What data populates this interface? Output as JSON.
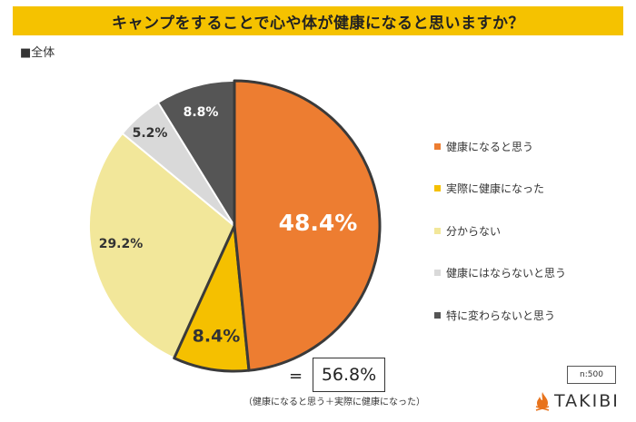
{
  "title": "キャンプをすることで心や体が健康になると思いますか？",
  "subset_label": "■全体",
  "chart_data": {
    "type": "pie",
    "title": "キャンプをすることで心や体が健康になると思いますか？",
    "slices": [
      {
        "label": "健康になると思う",
        "value": 48.4,
        "display": "48.4%",
        "color": "#ed7d31",
        "label_color": "#ffffff"
      },
      {
        "label": "実際に健康になった",
        "value": 8.4,
        "display": "8.4%",
        "color": "#f5c000",
        "label_color": "#333333"
      },
      {
        "label": "分からない",
        "value": 29.2,
        "display": "29.2%",
        "color": "#f2e79a",
        "label_color": "#333333"
      },
      {
        "label": "健康にはならないと思う",
        "value": 5.2,
        "display": "5.2%",
        "color": "#d9d9d9",
        "label_color": "#333333"
      },
      {
        "label": "特に変わらないと思う",
        "value": 8.8,
        "display": "8.8%",
        "color": "#555555",
        "label_color": "#ffffff"
      }
    ],
    "legend_position": "right"
  },
  "summary": {
    "equals": "=",
    "total": "56.8%",
    "note": "（健康になると思う＋実際に健康になった）"
  },
  "sample_size": "n:500",
  "brand": {
    "name": "TAKIBI",
    "icon": "flame-icon",
    "icon_color": "#e8731c"
  }
}
